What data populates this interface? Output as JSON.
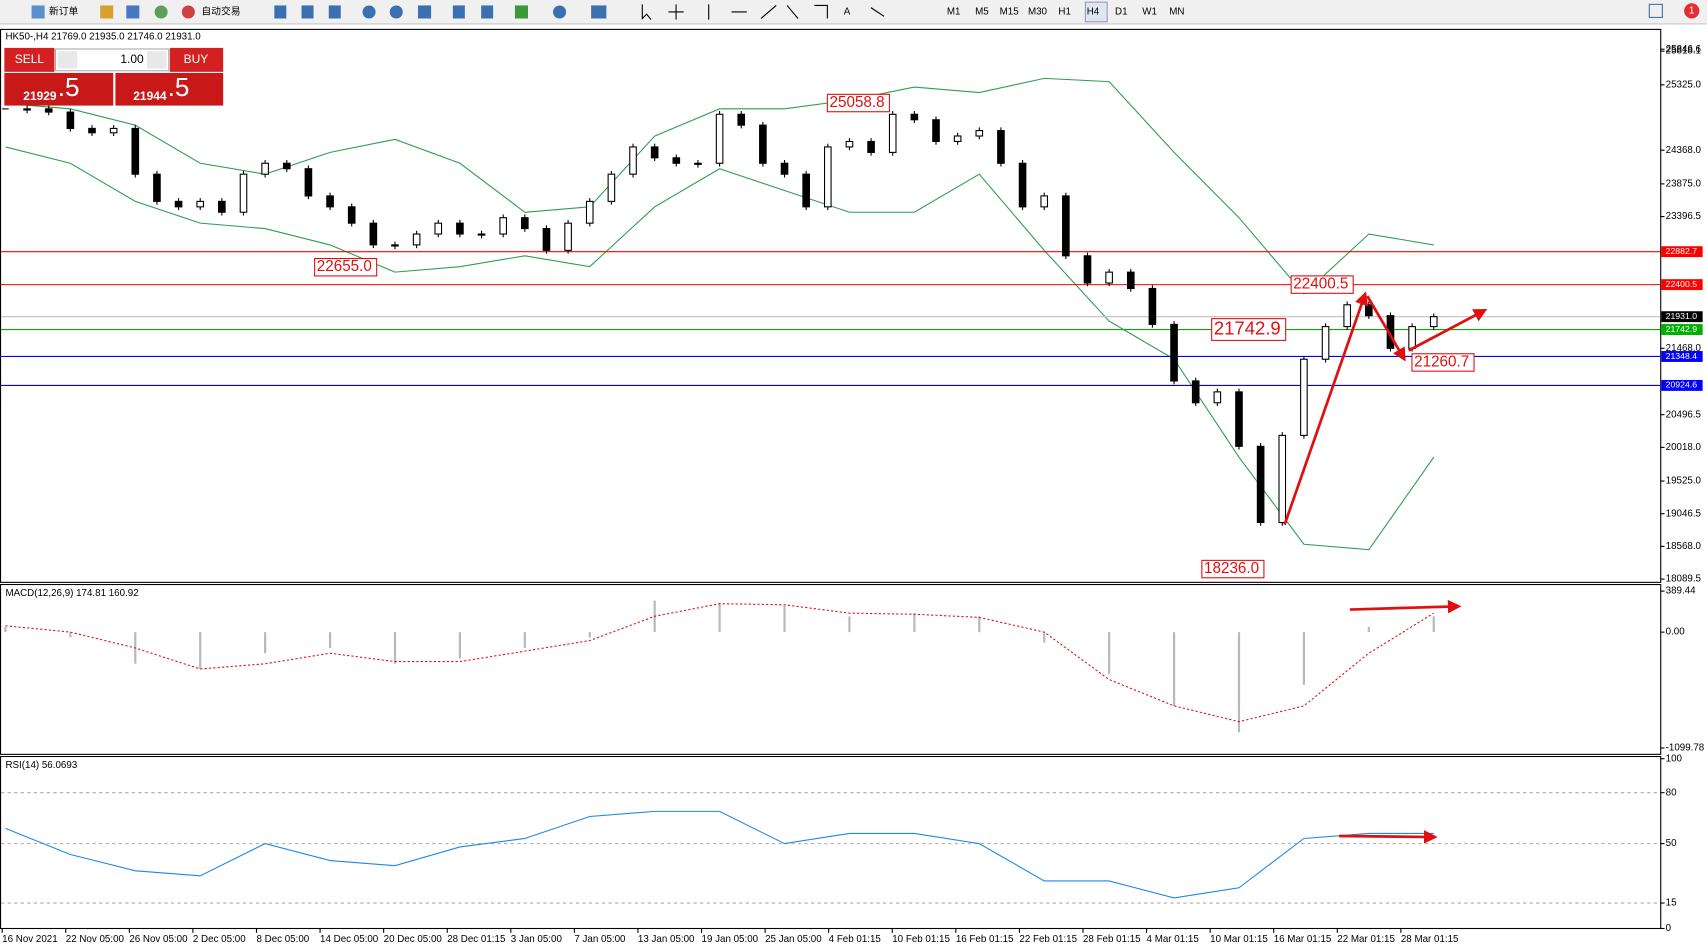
{
  "toolbar": {
    "new_order": "新订单",
    "auto_trading": "自动交易",
    "timeframes": [
      "M1",
      "M5",
      "M15",
      "M30",
      "H1",
      "H4",
      "D1",
      "W1",
      "MN"
    ],
    "notifications": "1"
  },
  "symbol_info": "HK50-,H4  21769.0 21935.0 21746.0 21931.0",
  "trade_panel": {
    "sell": "SELL",
    "buy": "BUY",
    "volume": "1.00",
    "sell_price": {
      "main": "21929",
      "pips": ".5"
    },
    "buy_price": {
      "main": "21944",
      "pips": ".5"
    }
  },
  "price_chart": {
    "ylim": [
      18041.7,
      26136.8
    ],
    "yticks": [
      25818.1,
      {
        "value": 25325.0,
        "label": "25325.0"
      },
      25846.6,
      {
        "value": 24368.0,
        "label": "24368.0"
      },
      {
        "value": 23875.0,
        "label": "23875.0"
      },
      23396.5,
      {
        "value": 21468.0,
        "label": "21468.0"
      },
      20496.5,
      {
        "value": 20018.0,
        "label": "20018.0"
      },
      {
        "value": 19525.0,
        "label": "19525.0"
      },
      19046.5,
      {
        "value": 18568.0,
        "label": "18568.0"
      },
      18089.5
    ],
    "levels": [
      {
        "value": 22882.7,
        "label": "22882.7",
        "color": "#ff0000"
      },
      {
        "value": 22400.5,
        "label": "22400.5",
        "color": "#ff0000"
      },
      {
        "value": 21931.0,
        "label": "21931.0",
        "color": "#c0c0c0"
      },
      {
        "value": 21742.9,
        "label": "21742.9",
        "color": "#00b000"
      },
      {
        "value": 21348.4,
        "label": "21348.4",
        "color": "#0000ff"
      },
      {
        "value": 20924.6,
        "label": "20924.6",
        "color": "#0000ff"
      }
    ],
    "annotations": [
      {
        "value": 25058.8,
        "label": "25058.8"
      },
      {
        "value": 22655.0,
        "label": "22655.0"
      },
      {
        "value": 22400.5,
        "label": "22400.5"
      },
      {
        "value": 21742.9,
        "label": "21742.9"
      },
      {
        "value": 21260.7,
        "label": "21260.7"
      },
      {
        "value": 18236.0,
        "label": "18236.0"
      }
    ],
    "closes": [
      24973,
      24973,
      24926,
      24687,
      24623,
      24687,
      24017,
      23619,
      23539,
      23619,
      23460,
      24017,
      24177,
      24097,
      23699,
      23539,
      23300,
      22982,
      22982,
      23141,
      23300,
      23141,
      23141,
      23380,
      23221,
      22902,
      23300,
      23619,
      24017,
      24416,
      24257,
      24177,
      24177,
      24894,
      24735,
      24177,
      24017,
      23539,
      24416,
      24496,
      24336,
      24894,
      24814,
      24496,
      24576,
      24655,
      24177,
      23539,
      23699,
      22822,
      22424,
      22583,
      22344,
      21818,
      20990,
      20671,
      20830,
      20033,
      18918,
      20193,
      21308,
      21786,
      22105,
      21946,
      21468,
      21786,
      21931
    ],
    "band_upper": [
      25053,
      24973,
      24734,
      24177,
      24017,
      24336,
      24527,
      24177,
      23460,
      23539,
      24575,
      24973,
      24973,
      25101,
      25292,
      25213,
      25420,
      25372,
      24336,
      23380,
      22265,
      23141,
      22982
    ],
    "band_lower": [
      24416,
      24177,
      23619,
      23300,
      23221,
      22982,
      22583,
      22663,
      22822,
      22663,
      23539,
      24097,
      23778,
      23460,
      23460,
      24017,
      22902,
      21866,
      21308,
      19874,
      18599,
      18520,
      19874
    ],
    "band_color": "#2e9e4e"
  },
  "macd": {
    "title": "MACD(12,26,9) 174.81 160.92",
    "ylim": [
      -1160,
      452
    ],
    "yticks": [
      389.44,
      {
        "value": 0,
        "label": "0.00"
      },
      -1099.78
    ],
    "histogram": [
      50,
      -50,
      -300,
      -350,
      -200,
      -150,
      -300,
      -250,
      -150,
      -50,
      300,
      280,
      250,
      150,
      180,
      150,
      -100,
      -400,
      -700,
      -950,
      -500,
      50,
      150
    ],
    "signal": [
      60,
      0,
      -150,
      -350,
      -300,
      -200,
      -280,
      -280,
      -180,
      -80,
      150,
      270,
      260,
      180,
      170,
      140,
      0,
      -450,
      -700,
      -850,
      -700,
      -200,
      180
    ]
  },
  "rsi": {
    "title": "RSI(14) 56.0693",
    "ylim": [
      0,
      101.3
    ],
    "yticks": [
      100,
      80,
      50,
      15,
      0
    ],
    "dashed_levels": [
      80,
      50,
      15
    ],
    "values": [
      59,
      43.6,
      34,
      31,
      50,
      40,
      37,
      48,
      53,
      66,
      69,
      69,
      50,
      56,
      56,
      50,
      28,
      28,
      18,
      24,
      53,
      56,
      56
    ]
  },
  "time_axis": [
    "16 Nov 2021",
    "22 Nov 05:00",
    "26 Nov 05:00",
    "2 Dec 05:00",
    "8 Dec 05:00",
    "14 Dec 05:00",
    "20 Dec 05:00",
    "28 Dec 01:15",
    "3 Jan 05:00",
    "7 Jan 05:00",
    "13 Jan 05:00",
    "19 Jan 05:00",
    "25 Jan 05:00",
    "4 Feb 01:15",
    "10 Feb 01:15",
    "16 Feb 01:15",
    "22 Feb 01:15",
    "28 Feb 01:15",
    "4 Mar 01:15",
    "10 Mar 01:15",
    "16 Mar 01:15",
    "22 Mar 01:15",
    "28 Mar 01:15"
  ]
}
